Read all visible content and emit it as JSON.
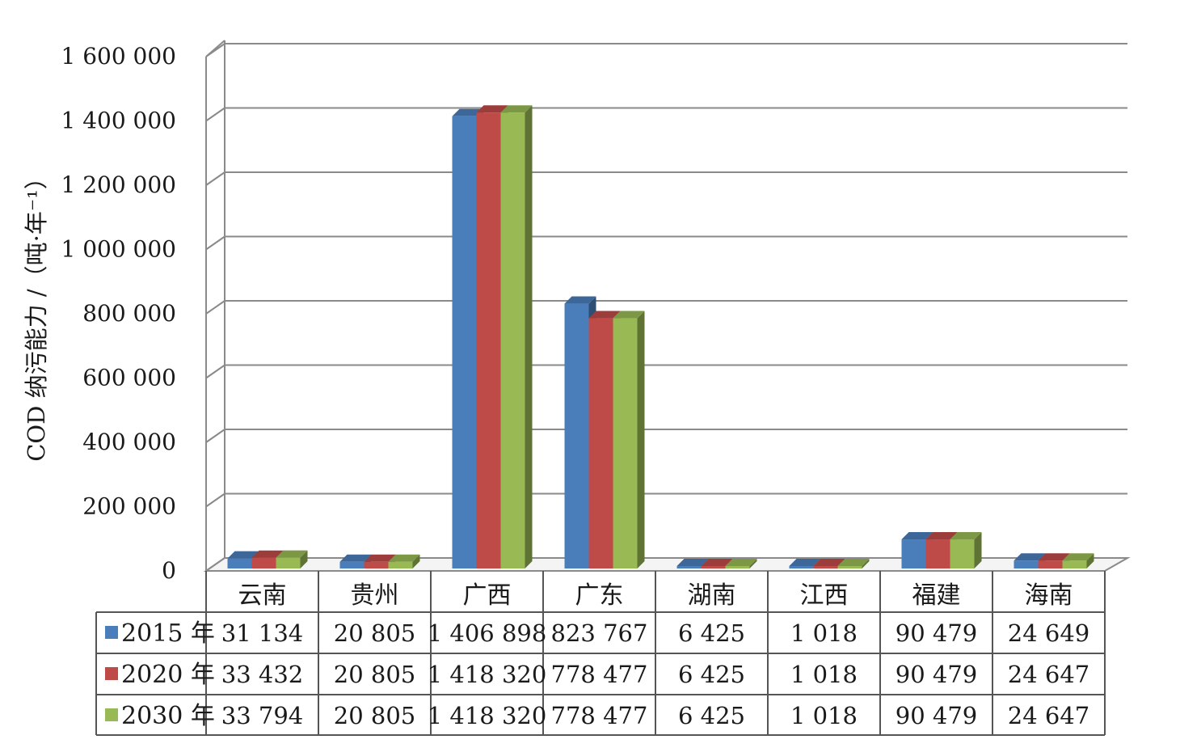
{
  "chart_data": {
    "type": "bar",
    "title": "",
    "ylabel": "COD 纳污能力 /（吨·年⁻¹）",
    "xlabel": "",
    "ylim": [
      0,
      1600000
    ],
    "yticks": [
      0,
      200000,
      400000,
      600000,
      800000,
      1000000,
      1200000,
      1400000,
      1600000
    ],
    "ytick_labels": [
      "0",
      "200 000",
      "400 000",
      "600 000",
      "800 000",
      "1 000 000",
      "1 200 000",
      "1 400 000",
      "1 600 000"
    ],
    "grid": true,
    "style": "3d-clustered-column-with-data-table",
    "categories": [
      "云南",
      "贵州",
      "广西",
      "广东",
      "湖南",
      "江西",
      "福建",
      "海南"
    ],
    "series": [
      {
        "name": "2015 年",
        "color": "#4a7ebb",
        "values": [
          31134,
          20805,
          1406898,
          823767,
          6425,
          1018,
          90479,
          24649
        ],
        "labels": [
          "31 134",
          "20 805",
          "1 406 898",
          "823 767",
          "6 425",
          "1 018",
          "90 479",
          "24 649"
        ]
      },
      {
        "name": "2020 年",
        "color": "#be4b48",
        "values": [
          33432,
          20805,
          1418320,
          778477,
          6425,
          1018,
          90479,
          24647
        ],
        "labels": [
          "33 432",
          "20 805",
          "1 418 320",
          "778 477",
          "6 425",
          "1 018",
          "90 479",
          "24 647"
        ]
      },
      {
        "name": "2030 年",
        "color": "#98b954",
        "values": [
          33794,
          20805,
          1418320,
          778477,
          6425,
          1018,
          90479,
          24647
        ],
        "labels": [
          "33 794",
          "20 805",
          "1 418 320",
          "778 477",
          "6 425",
          "1 018",
          "90 479",
          "24 647"
        ]
      }
    ]
  }
}
